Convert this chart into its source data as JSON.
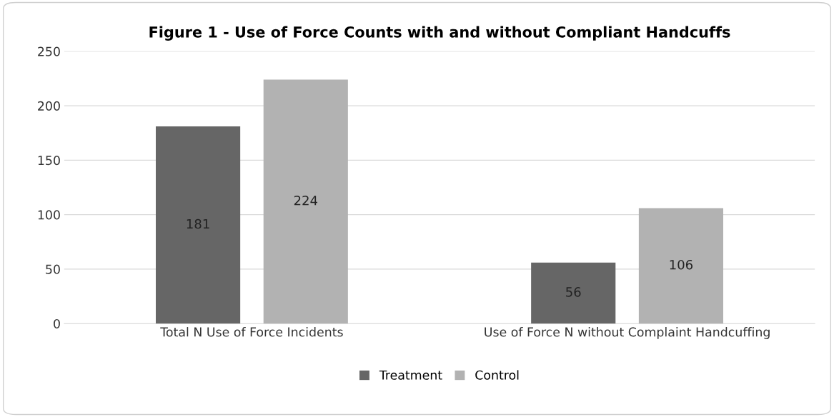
{
  "chart_data": {
    "type": "bar",
    "title": "Figure 1 - Use of Force Counts with and without Compliant Handcuffs",
    "categories": [
      "Total N Use of Force Incidents",
      "Use of Force N without Complaint Handcuffing"
    ],
    "series": [
      {
        "name": "Treatment",
        "color": "#666666",
        "values": [
          181,
          56
        ]
      },
      {
        "name": "Control",
        "color": "#b2b2b2",
        "values": [
          224,
          106
        ]
      }
    ],
    "ylim": [
      0,
      250
    ],
    "yticks": [
      0,
      50,
      100,
      150,
      200,
      250
    ],
    "grid": "y",
    "legend": "bottom",
    "data_labels": true
  }
}
